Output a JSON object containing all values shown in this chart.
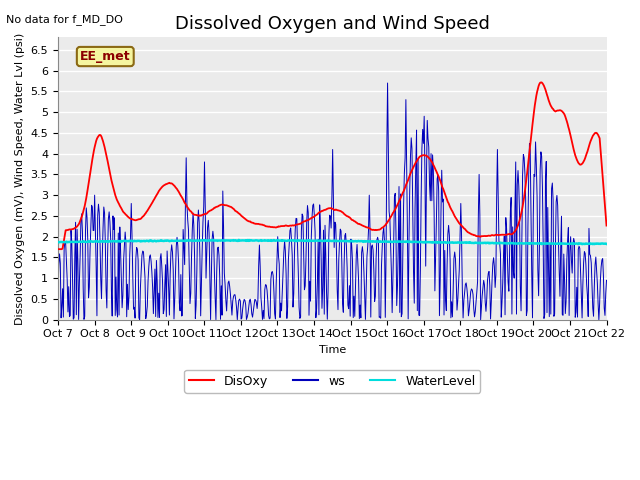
{
  "title": "Dissolved Oxygen and Wind Speed",
  "xlabel": "Time",
  "ylabel": "Dissolved Oxygen (mV), Wind Speed, Water Lvl (psi)",
  "ylim": [
    0.0,
    6.8
  ],
  "yticks": [
    0.0,
    0.5,
    1.0,
    1.5,
    2.0,
    2.5,
    3.0,
    3.5,
    4.0,
    4.5,
    5.0,
    5.5,
    6.0,
    6.5
  ],
  "xtick_labels": [
    "Oct 7",
    "Oct 8",
    "Oct 9",
    "Oct 10",
    "Oct 11",
    "Oct 12",
    "Oct 13",
    "Oct 14",
    "Oct 15",
    "Oct 16",
    "Oct 17",
    "Oct 18",
    "Oct 19",
    "Oct 20",
    "Oct 21",
    "Oct 22"
  ],
  "disoxy_color": "#ff0000",
  "ws_color": "#0000bb",
  "water_color": "#00dddd",
  "plot_bg": "#ebebeb",
  "fig_bg": "#ffffff",
  "annotation_text": "No data for f_MD_DO",
  "box_label": "EE_met",
  "n_points": 720,
  "n_days": 15,
  "title_fontsize": 13,
  "axis_fontsize": 8,
  "tick_fontsize": 8,
  "legend_fontsize": 9,
  "water_level_value": 1.87
}
